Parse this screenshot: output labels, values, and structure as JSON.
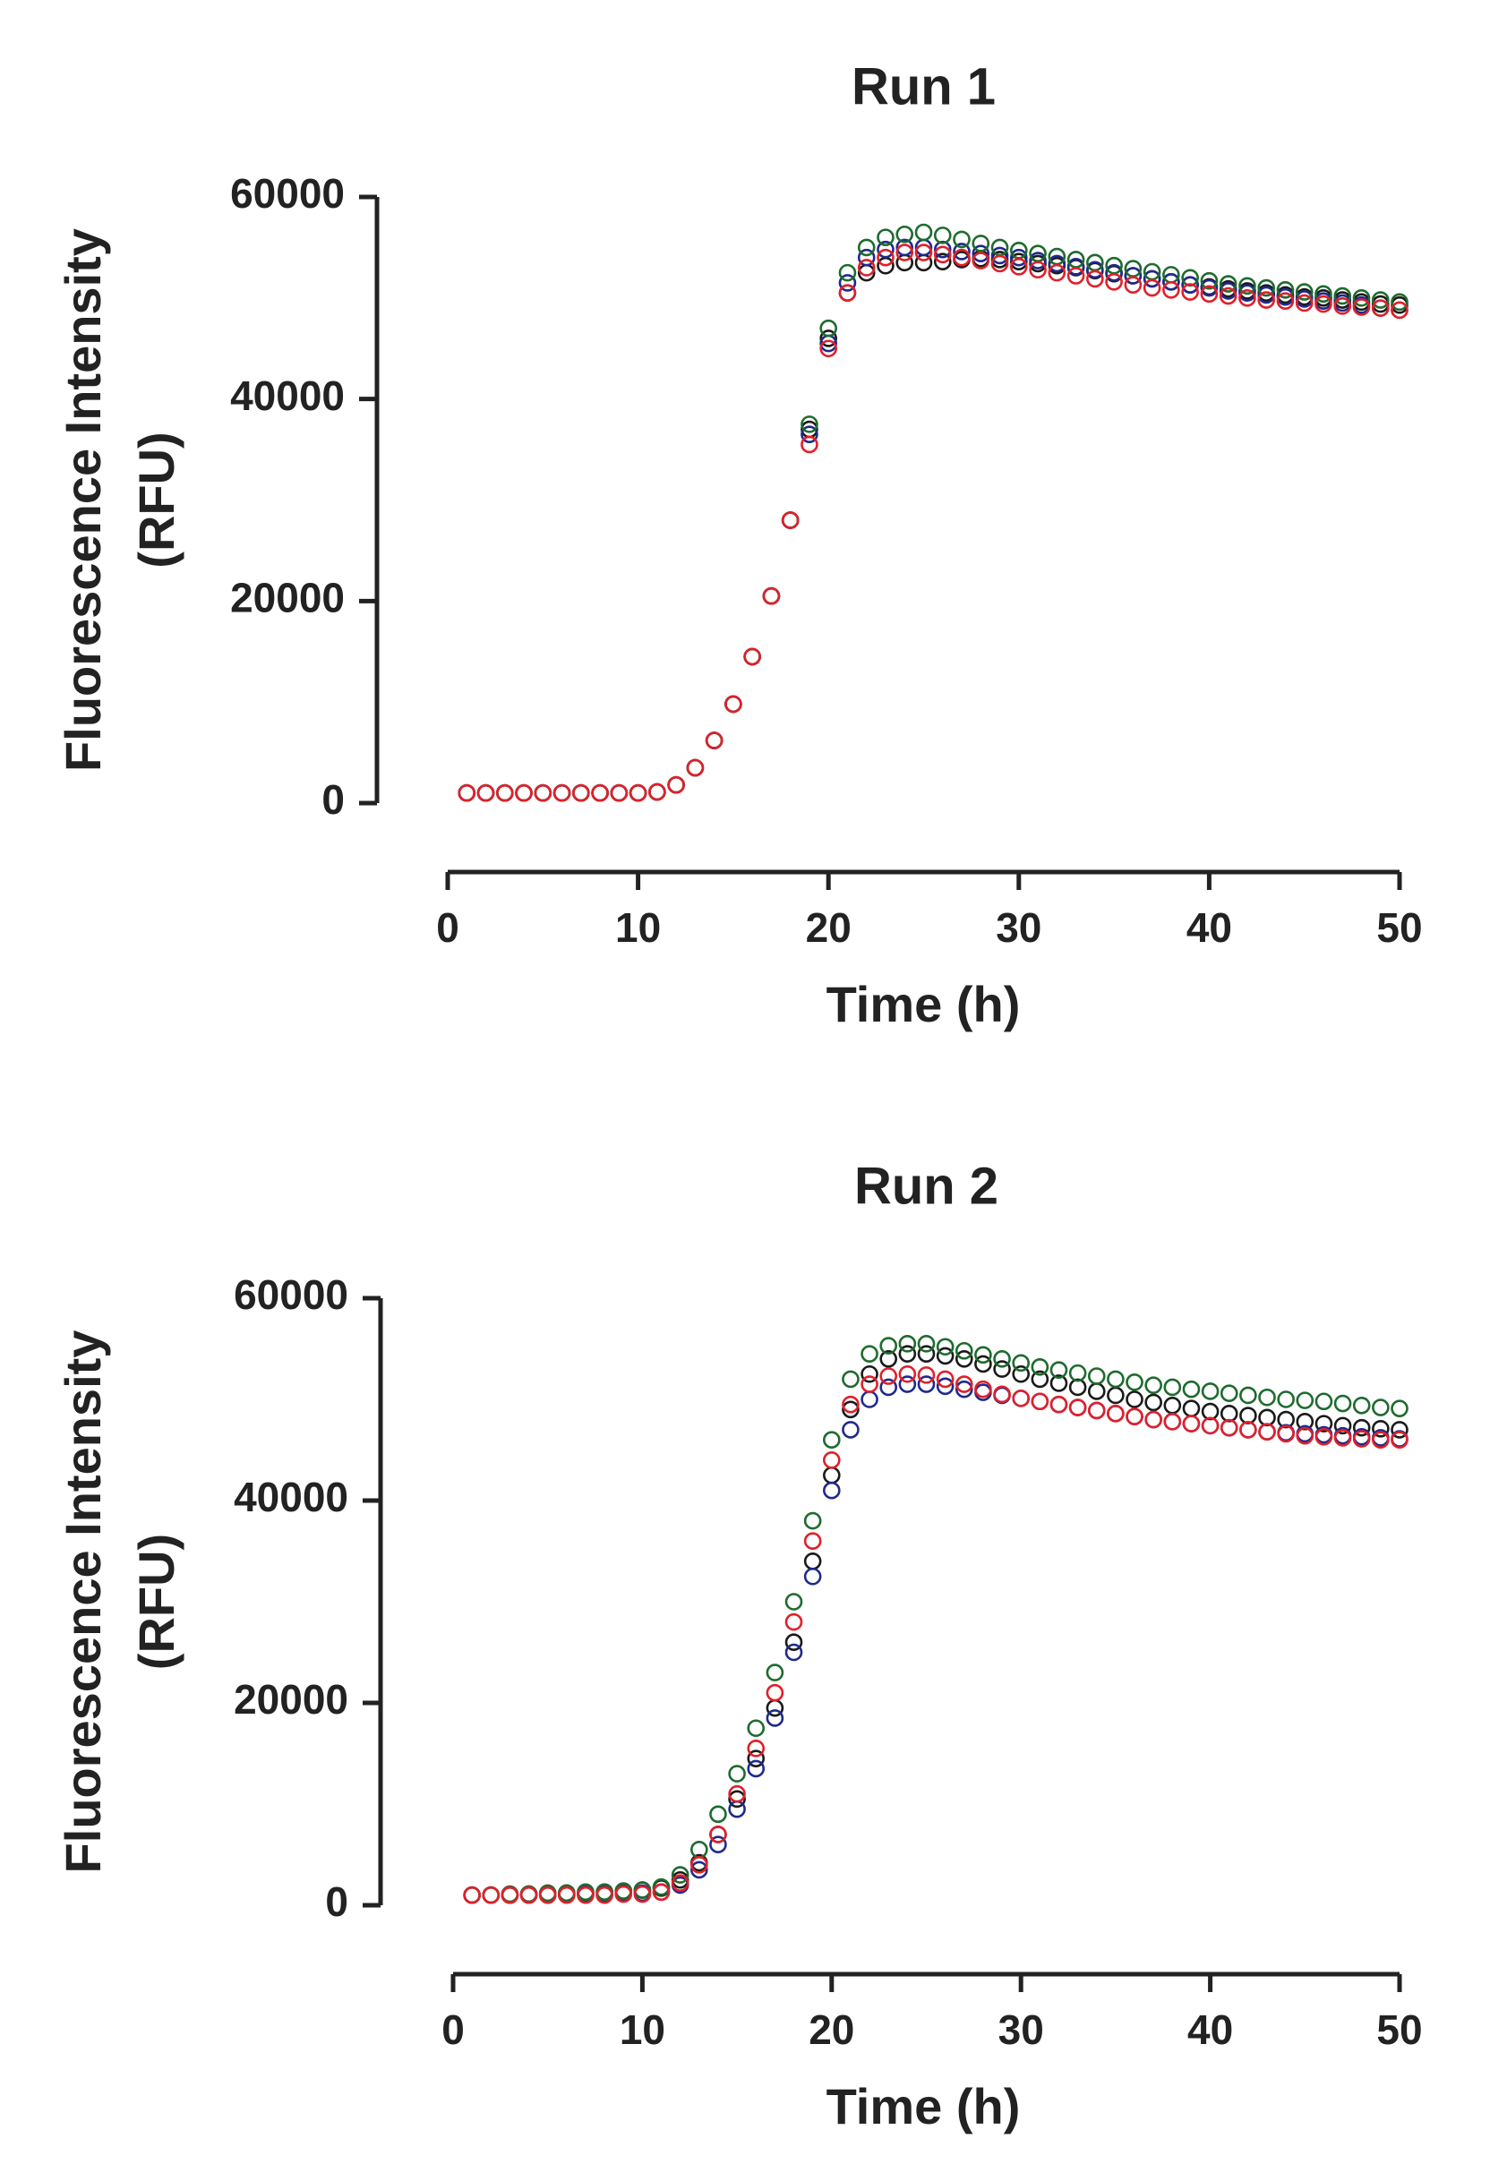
{
  "chart_data": [
    {
      "type": "scatter",
      "title": "Run 1",
      "x_label": "Time (h)",
      "y_label": [
        "Fluorescence Intensity",
        "(RFU)"
      ],
      "xlim": [
        0,
        50
      ],
      "xticks": [
        0,
        10,
        20,
        30,
        40,
        50
      ],
      "ylim": [
        0,
        60000
      ],
      "yticks": [
        0,
        20000,
        40000,
        60000
      ],
      "x": [
        1,
        2,
        3,
        4,
        5,
        6,
        7,
        8,
        9,
        10,
        11,
        12,
        13,
        14,
        15,
        16,
        17,
        18,
        19,
        20,
        21,
        22,
        23,
        24,
        25,
        26,
        27,
        28,
        29,
        30,
        31,
        32,
        33,
        34,
        35,
        36,
        37,
        38,
        39,
        40,
        41,
        42,
        43,
        44,
        45,
        46,
        47,
        48,
        49,
        50
      ],
      "series": [
        {
          "color": "#1a1a1a",
          "values": [
            1000,
            1000,
            1000,
            1000,
            1000,
            1000,
            1000,
            1000,
            1000,
            1000,
            1100,
            1800,
            3500,
            6200,
            9800,
            14500,
            20500,
            28000,
            37000,
            46000,
            50500,
            52500,
            53200,
            53500,
            53500,
            53600,
            53800,
            53900,
            53800,
            53600,
            53400,
            53200,
            53000,
            52700,
            52400,
            52200,
            51900,
            51600,
            51300,
            51100,
            50900,
            50700,
            50500,
            50300,
            50100,
            50000,
            49800,
            49600,
            49400,
            49300
          ]
        },
        {
          "color": "#1f2a8c",
          "values": [
            1000,
            1000,
            1000,
            1000,
            1000,
            1000,
            1000,
            1000,
            1000,
            1000,
            1100,
            1800,
            3500,
            6200,
            9800,
            14500,
            20500,
            28000,
            36500,
            45500,
            51500,
            54000,
            54800,
            55000,
            55000,
            54800,
            54600,
            54400,
            54200,
            54000,
            53700,
            53400,
            53100,
            52800,
            52500,
            52200,
            51900,
            51600,
            51300,
            51000,
            50700,
            50500,
            50300,
            50100,
            49900,
            49700,
            49500,
            49300,
            49000,
            48800
          ]
        },
        {
          "color": "#1e6b2e",
          "values": [
            1000,
            1000,
            1000,
            1000,
            1000,
            1000,
            1000,
            1000,
            1000,
            1000,
            1100,
            1800,
            3500,
            6200,
            9800,
            14500,
            20500,
            28000,
            37500,
            47000,
            52500,
            55000,
            56000,
            56300,
            56500,
            56200,
            55800,
            55400,
            55000,
            54700,
            54400,
            54100,
            53800,
            53500,
            53200,
            52900,
            52600,
            52300,
            52000,
            51700,
            51400,
            51200,
            51000,
            50800,
            50600,
            50400,
            50200,
            50000,
            49800,
            49600
          ]
        },
        {
          "color": "#e0202a",
          "values": [
            1000,
            1000,
            1000,
            1000,
            1000,
            1000,
            1000,
            1000,
            1000,
            1000,
            1100,
            1800,
            3500,
            6200,
            9800,
            14500,
            20500,
            28000,
            35500,
            45000,
            50500,
            53000,
            54000,
            54500,
            54500,
            54300,
            54000,
            53700,
            53400,
            53100,
            52800,
            52500,
            52200,
            51900,
            51600,
            51300,
            51000,
            50800,
            50600,
            50400,
            50200,
            50000,
            49800,
            49700,
            49500,
            49400,
            49200,
            49100,
            49000,
            48800
          ]
        }
      ]
    },
    {
      "type": "scatter",
      "title": "Run 2",
      "x_label": "Time (h)",
      "y_label": [
        "Fluorescence Intensity",
        "(RFU)"
      ],
      "xlim": [
        0,
        50
      ],
      "xticks": [
        0,
        10,
        20,
        30,
        40,
        50
      ],
      "ylim": [
        0,
        60000
      ],
      "yticks": [
        0,
        20000,
        40000,
        60000
      ],
      "x": [
        1,
        2,
        3,
        4,
        5,
        6,
        7,
        8,
        9,
        10,
        11,
        12,
        13,
        14,
        15,
        16,
        17,
        18,
        19,
        20,
        21,
        22,
        23,
        24,
        25,
        26,
        27,
        28,
        29,
        30,
        31,
        32,
        33,
        34,
        35,
        36,
        37,
        38,
        39,
        40,
        41,
        42,
        43,
        44,
        45,
        46,
        47,
        48,
        49,
        50
      ],
      "series": [
        {
          "color": "#1a1a1a",
          "values": [
            1000,
            1000,
            1000,
            1100,
            1100,
            1200,
            1200,
            1300,
            1400,
            1500,
            1700,
            2500,
            4200,
            7000,
            10500,
            14500,
            19500,
            26000,
            34000,
            42500,
            49000,
            52500,
            54000,
            54500,
            54500,
            54300,
            54000,
            53500,
            53000,
            52500,
            52000,
            51600,
            51200,
            50800,
            50400,
            50000,
            49700,
            49400,
            49100,
            48800,
            48600,
            48400,
            48200,
            48000,
            47800,
            47600,
            47400,
            47200,
            47100,
            47000
          ]
        },
        {
          "color": "#1f2a8c",
          "values": [
            1000,
            1000,
            1000,
            1000,
            1000,
            1100,
            1100,
            1100,
            1200,
            1200,
            1300,
            2000,
            3500,
            6000,
            9500,
            13500,
            18500,
            25000,
            32500,
            41000,
            47000,
            50000,
            51200,
            51500,
            51500,
            51300,
            51000,
            50700,
            50400,
            50100,
            49800,
            49500,
            49200,
            48900,
            48600,
            48300,
            48000,
            47800,
            47600,
            47400,
            47200,
            47000,
            46800,
            46700,
            46600,
            46500,
            46400,
            46300,
            46200,
            46100
          ]
        },
        {
          "color": "#1e6b2e",
          "values": [
            1000,
            1000,
            1100,
            1100,
            1200,
            1200,
            1300,
            1300,
            1400,
            1500,
            1800,
            3000,
            5500,
            9000,
            13000,
            17500,
            23000,
            30000,
            38000,
            46000,
            52000,
            54500,
            55300,
            55500,
            55500,
            55200,
            54800,
            54400,
            54000,
            53600,
            53200,
            52900,
            52600,
            52300,
            52000,
            51700,
            51400,
            51200,
            51000,
            50800,
            50600,
            50400,
            50200,
            50000,
            49900,
            49800,
            49600,
            49400,
            49200,
            49100
          ]
        },
        {
          "color": "#e0202a",
          "values": [
            1000,
            1000,
            1000,
            1000,
            1000,
            1000,
            1000,
            1000,
            1100,
            1100,
            1300,
            2200,
            4000,
            7000,
            11000,
            15500,
            21000,
            28000,
            36000,
            44000,
            49500,
            51500,
            52300,
            52500,
            52400,
            52000,
            51500,
            51000,
            50500,
            50100,
            49800,
            49500,
            49200,
            48900,
            48600,
            48300,
            48000,
            47800,
            47600,
            47400,
            47200,
            47000,
            46800,
            46600,
            46400,
            46300,
            46200,
            46100,
            46000,
            46000
          ]
        }
      ]
    }
  ]
}
